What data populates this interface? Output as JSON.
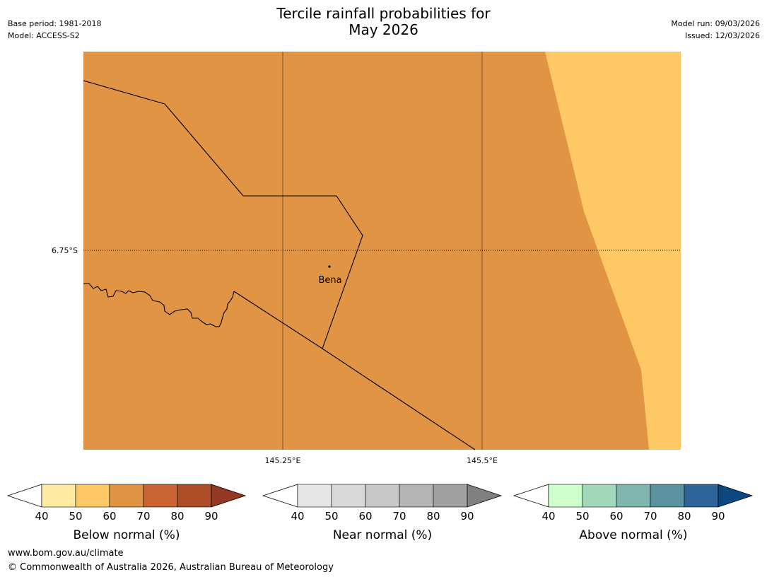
{
  "title_line1": "Tercile rainfall probabilities for",
  "title_line2": "May 2026",
  "base_period": "Base period: 1981-2018",
  "model": "Model: ACCESS-S2",
  "model_run": "Model run: 09/03/2026",
  "issued": "Issued: 12/03/2026",
  "map": {
    "lat_label": "6.75°S",
    "lon_labels": [
      "145.25°E",
      "145.5°E"
    ],
    "place_label": "Bena",
    "colors": {
      "main_fill": "#e09444",
      "east_fill": "#fec965",
      "gridline": "#000000"
    }
  },
  "colorbars": [
    {
      "title": "Below normal (%)",
      "ticks": [
        "40",
        "50",
        "60",
        "70",
        "80",
        "90"
      ],
      "under_color": "#ffffff",
      "colors": [
        "#feeaa0",
        "#fec965",
        "#e09444",
        "#c96432",
        "#ac4d27"
      ],
      "over_color": "#943723"
    },
    {
      "title": "Near normal (%)",
      "ticks": [
        "40",
        "50",
        "60",
        "70",
        "80",
        "90"
      ],
      "under_color": "#ffffff",
      "colors": [
        "#e6e6e6",
        "#d9d9d9",
        "#c8c8c8",
        "#b4b4b4",
        "#a0a0a0"
      ],
      "over_color": "#808080"
    },
    {
      "title": "Above normal (%)",
      "ticks": [
        "40",
        "50",
        "60",
        "70",
        "80",
        "90"
      ],
      "under_color": "#ffffff",
      "colors": [
        "#ccffcc",
        "#a3d9ba",
        "#80b6ad",
        "#5a92a0",
        "#2e6498"
      ],
      "over_color": "#0d4780"
    }
  ],
  "footer_url": "www.bom.gov.au/climate",
  "footer_copyright": "© Commonwealth of Australia 2026, Australian Bureau of Meteorology"
}
